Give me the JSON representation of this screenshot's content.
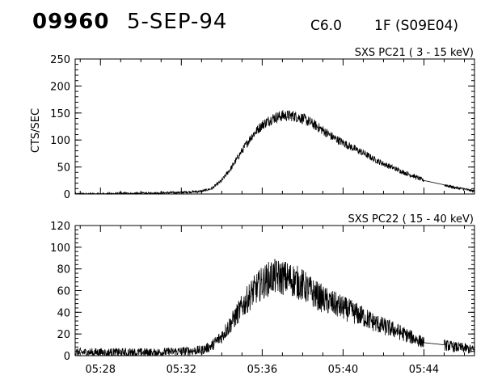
{
  "header": {
    "event_number": "09960",
    "date": "5-SEP-94",
    "flare_class": "C6.0",
    "flare_importance": "1F (S09E04)"
  },
  "chart_data": [
    {
      "type": "line",
      "title": "SXS PC21  (  3 - 15 keV)",
      "ylabel": "CTS/SEC",
      "xlabel": "",
      "xlim": [
        "05:26:45",
        "05:46:30"
      ],
      "ylim": [
        0,
        250
      ],
      "yticks": [
        0,
        50,
        100,
        150,
        200,
        250
      ],
      "xticks": [
        "05:28",
        "05:32",
        "05:36",
        "05:40",
        "05:44"
      ],
      "series": [
        {
          "x": [
            "05:26:45",
            "05:28:00",
            "05:29:00",
            "05:30:00",
            "05:31:00",
            "05:32:00",
            "05:33:00",
            "05:33:30",
            "05:34:00",
            "05:34:30",
            "05:35:00",
            "05:35:30",
            "05:36:00",
            "05:36:30",
            "05:37:00",
            "05:37:30",
            "05:38:00",
            "05:38:30",
            "05:39:00",
            "05:39:30",
            "05:40:00",
            "05:40:30",
            "05:41:00",
            "05:41:30",
            "05:42:00",
            "05:42:30",
            "05:43:00",
            "05:43:30",
            "05:44:00",
            "05:44:30",
            "05:45:00",
            "05:45:30",
            "05:46:00",
            "05:46:30"
          ],
          "y": [
            0,
            0,
            1,
            1,
            2,
            3,
            5,
            10,
            25,
            50,
            80,
            108,
            128,
            140,
            145,
            145,
            140,
            130,
            118,
            105,
            95,
            85,
            76,
            65,
            56,
            48,
            40,
            33,
            25,
            20,
            17,
            12,
            9,
            5
          ]
        }
      ]
    },
    {
      "type": "line",
      "title": "SXS PC22  ( 15 - 40 keV)",
      "ylabel": "",
      "xlabel": "",
      "xlim": [
        "05:26:45",
        "05:46:30"
      ],
      "ylim": [
        0,
        120
      ],
      "yticks": [
        0,
        20,
        40,
        60,
        80,
        100,
        120
      ],
      "xticks": [
        "05:28",
        "05:32",
        "05:36",
        "05:40",
        "05:44"
      ],
      "series": [
        {
          "x": [
            "05:26:45",
            "05:28:00",
            "05:29:00",
            "05:30:00",
            "05:31:00",
            "05:32:00",
            "05:33:00",
            "05:33:30",
            "05:34:00",
            "05:34:30",
            "05:35:00",
            "05:35:30",
            "05:36:00",
            "05:36:30",
            "05:37:00",
            "05:37:30",
            "05:38:00",
            "05:38:30",
            "05:39:00",
            "05:39:30",
            "05:40:00",
            "05:40:30",
            "05:41:00",
            "05:41:30",
            "05:42:00",
            "05:42:30",
            "05:43:00",
            "05:43:30",
            "05:44:00",
            "05:44:30",
            "05:45:00",
            "05:45:30",
            "05:46:00",
            "05:46:30"
          ],
          "y": [
            3,
            3,
            3,
            3,
            3,
            4,
            5,
            9,
            18,
            31,
            45,
            58,
            67,
            73,
            72,
            70,
            65,
            58,
            52,
            48,
            44,
            40,
            36,
            31,
            27,
            24,
            20,
            16,
            12,
            12,
            10,
            8,
            7,
            5
          ]
        }
      ]
    }
  ]
}
